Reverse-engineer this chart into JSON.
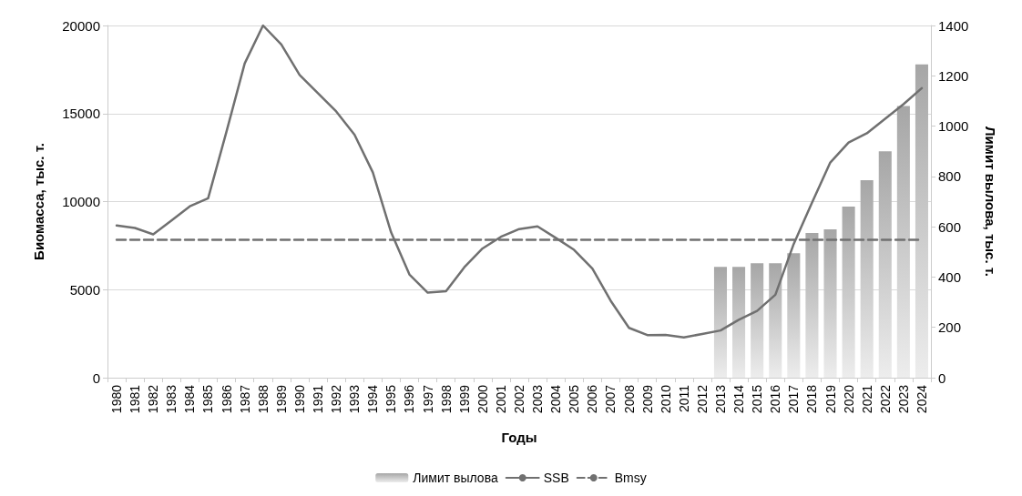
{
  "chart_data": {
    "type": "line",
    "xlabel": "Годы",
    "ylabel": "Биомасса, тыс. т.",
    "y2label": "Лимит вылова, тыс. т.",
    "categories": [
      "1980",
      "1981",
      "1982",
      "1983",
      "1984",
      "1985",
      "1986",
      "1987",
      "1988",
      "1989",
      "1990",
      "1991",
      "1992",
      "1993",
      "1994",
      "1995",
      "1996",
      "1997",
      "1998",
      "1999",
      "2000",
      "2001",
      "2002",
      "2003",
      "2004",
      "2005",
      "2006",
      "2007",
      "2008",
      "2009",
      "2010",
      "2011",
      "2012",
      "2013",
      "2014",
      "2015",
      "2016",
      "2017",
      "2018",
      "2019",
      "2020",
      "2021",
      "2022",
      "2023",
      "2024"
    ],
    "series": [
      {
        "name": "Лимит вылова",
        "type": "bar",
        "axis": "y2",
        "color": "#a6a6a6",
        "values": [
          null,
          null,
          null,
          null,
          null,
          null,
          null,
          null,
          null,
          null,
          null,
          null,
          null,
          null,
          null,
          null,
          null,
          null,
          null,
          null,
          null,
          null,
          null,
          null,
          null,
          null,
          null,
          null,
          null,
          null,
          null,
          null,
          null,
          440,
          440,
          455,
          455,
          495,
          575,
          590,
          680,
          785,
          900,
          1080,
          1245
        ]
      },
      {
        "name": "SSB",
        "color": "#707070",
        "line_style": "solid",
        "values": [
          8640,
          8500,
          8140,
          8930,
          9730,
          10190,
          13960,
          17850,
          20000,
          18920,
          17190,
          16160,
          15120,
          13800,
          11660,
          8250,
          5860,
          4830,
          4910,
          6270,
          7340,
          8000,
          8440,
          8590,
          7940,
          7260,
          6200,
          4370,
          2830,
          2420,
          2430,
          2290,
          2480,
          2680,
          3290,
          3790,
          4710,
          7590,
          9930,
          12220,
          13350,
          13880,
          14700,
          15530,
          16440
        ]
      },
      {
        "name": "Bmsy",
        "color": "#707070",
        "line_style": "dashed",
        "values": [
          7830,
          7830,
          7830,
          7830,
          7830,
          7830,
          7830,
          7830,
          7830,
          7830,
          7830,
          7830,
          7830,
          7830,
          7830,
          7830,
          7830,
          7830,
          7830,
          7830,
          7830,
          7830,
          7830,
          7830,
          7830,
          7830,
          7830,
          7830,
          7830,
          7830,
          7830,
          7830,
          7830,
          7830,
          7830,
          7830,
          7830,
          7830,
          7830,
          7830,
          7830,
          7830,
          7830,
          7830,
          7830
        ]
      }
    ],
    "ylim": [
      0,
      20000
    ],
    "yticks": [
      0,
      5000,
      10000,
      15000,
      20000
    ],
    "y2lim": [
      0,
      1400
    ],
    "y2ticks": [
      0,
      200,
      400,
      600,
      800,
      1000,
      1200,
      1400
    ],
    "grid": "y",
    "legend": "bottom",
    "marker": "none"
  }
}
